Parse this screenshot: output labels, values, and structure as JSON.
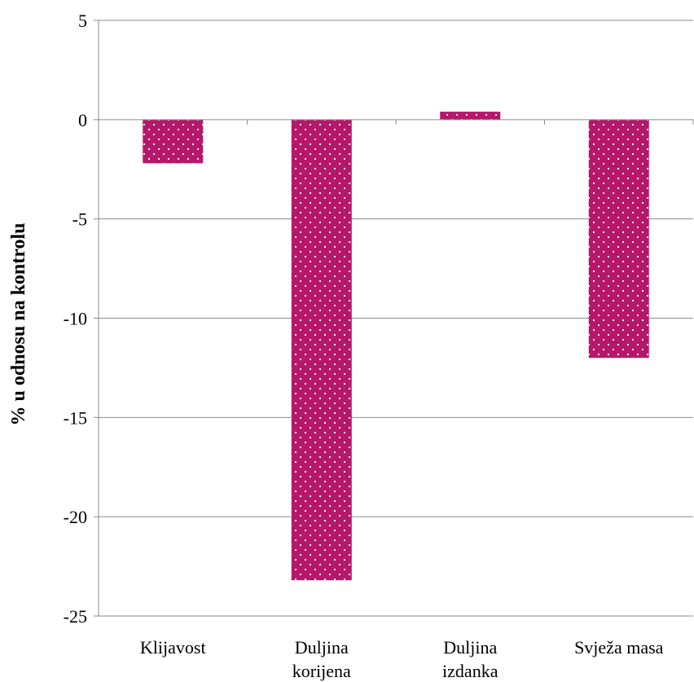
{
  "chart_data": {
    "type": "bar",
    "categories": [
      [
        "Klijavost"
      ],
      [
        "Duljina",
        "korijena"
      ],
      [
        "Duljina",
        "izdanka"
      ],
      [
        "Svježa masa"
      ]
    ],
    "values": [
      -2.2,
      -23.2,
      0.4,
      -12.0
    ],
    "ylabel": "% u odnosu na kontrolu",
    "ylim": [
      -25,
      5
    ],
    "yticks": [
      5,
      0,
      -5,
      -10,
      -15,
      -20,
      -25
    ],
    "grid": true,
    "bar_color": "#b5176a",
    "bar_pattern": "white-dots"
  }
}
